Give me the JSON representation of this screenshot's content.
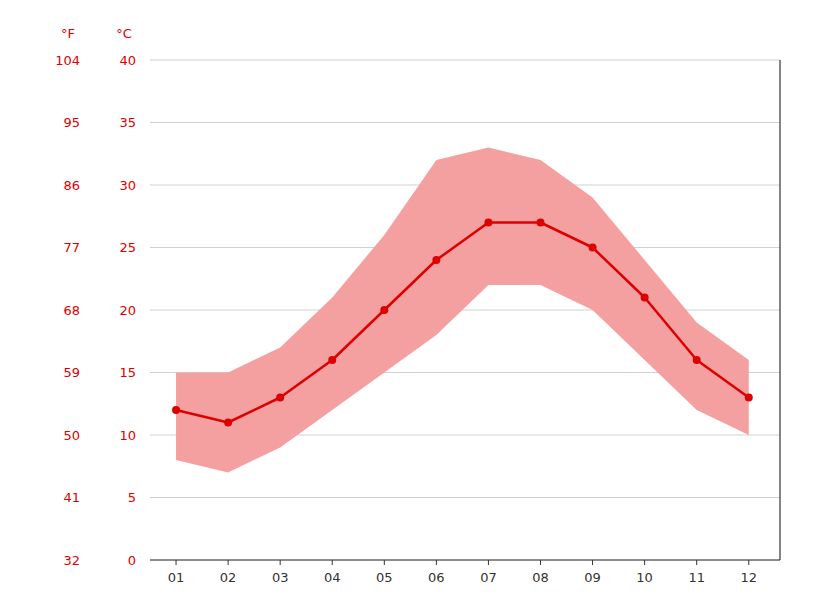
{
  "chart_data": {
    "type": "line",
    "y2label": "°F",
    "ylabel": "°C",
    "x": [
      1,
      2,
      3,
      4,
      5,
      6,
      7,
      8,
      9,
      10,
      11,
      12
    ],
    "xlim": [
      0.5,
      12.6
    ],
    "xticks": [
      {
        "value": 1,
        "label": "01"
      },
      {
        "value": 2,
        "label": "02"
      },
      {
        "value": 3,
        "label": "03"
      },
      {
        "value": 4,
        "label": "04"
      },
      {
        "value": 5,
        "label": "05"
      },
      {
        "value": 6,
        "label": "06"
      },
      {
        "value": 7,
        "label": "07"
      },
      {
        "value": 8,
        "label": "08"
      },
      {
        "value": 9,
        "label": "09"
      },
      {
        "value": 10,
        "label": "10"
      },
      {
        "value": 11,
        "label": "11"
      },
      {
        "value": 12,
        "label": "12"
      }
    ],
    "ylim": [
      0,
      40
    ],
    "yticks": [
      0,
      5,
      10,
      15,
      20,
      25,
      30,
      35,
      40
    ],
    "y2lim": [
      32,
      104
    ],
    "y2ticks": [
      32,
      41,
      50,
      59,
      68,
      77,
      86,
      95,
      104
    ],
    "grid": true,
    "series": [
      {
        "type": "area_range",
        "color": "#f5a0a0",
        "low": [
          8,
          7,
          9,
          12,
          15,
          18,
          22,
          22,
          20,
          16,
          12,
          10
        ],
        "high": [
          15,
          15,
          17,
          21,
          26,
          32,
          33,
          32,
          29,
          24,
          19,
          16
        ]
      },
      {
        "type": "line",
        "color": "#dd0000",
        "marker": "circle",
        "values": [
          12,
          11,
          13,
          16,
          20,
          24,
          27,
          27,
          25,
          21,
          16,
          13
        ]
      }
    ]
  }
}
